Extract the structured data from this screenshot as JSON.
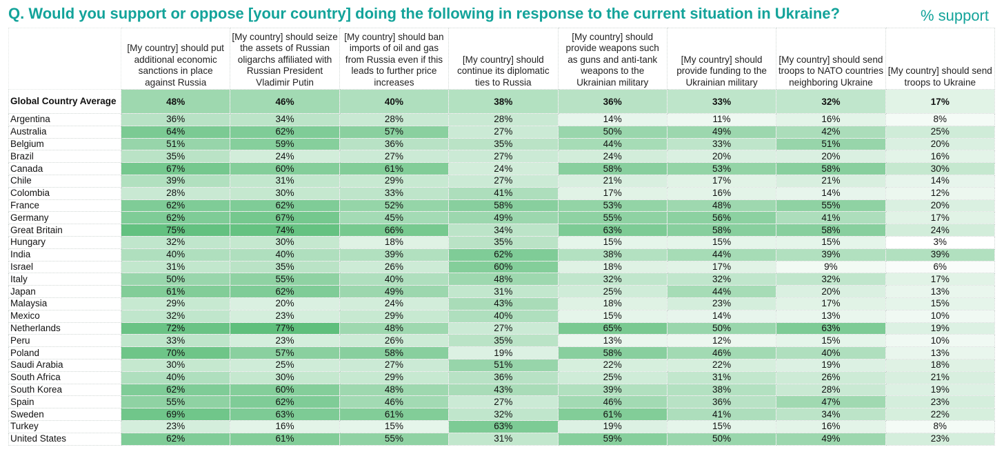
{
  "title": "Q. Would you support or oppose [your country] doing the following in response to the current situation in Ukraine?",
  "unit_label": "% support",
  "chart_data": {
    "type": "table",
    "columns": [
      "[My country] should put additional economic sanctions in place against Russia",
      "[My country] should seize the assets of Russian oligarchs affiliated with Russian President Vladimir Putin",
      "[My country] should ban imports of oil and gas from Russia even if this leads to further price increases",
      "[My country] should continue its diplomatic ties to Russia",
      "[My country] should provide weapons such as guns and anti-tank weapons to the Ukrainian military",
      "[My country] should provide funding to the Ukrainian military",
      "[My country] should send troops to NATO countries neighboring Ukraine",
      "[My country] should send troops to Ukraine"
    ],
    "average": {
      "label": "Global Country Average",
      "values": [
        "48%",
        "46%",
        "40%",
        "38%",
        "36%",
        "33%",
        "32%",
        "17%"
      ]
    },
    "rows": [
      {
        "country": "Argentina",
        "values": [
          "36%",
          "34%",
          "28%",
          "28%",
          "14%",
          "11%",
          "16%",
          "8%"
        ]
      },
      {
        "country": "Australia",
        "values": [
          "64%",
          "62%",
          "57%",
          "27%",
          "50%",
          "49%",
          "42%",
          "25%"
        ]
      },
      {
        "country": "Belgium",
        "values": [
          "51%",
          "59%",
          "36%",
          "35%",
          "44%",
          "33%",
          "51%",
          "20%"
        ]
      },
      {
        "country": "Brazil",
        "values": [
          "35%",
          "24%",
          "27%",
          "27%",
          "24%",
          "20%",
          "20%",
          "16%"
        ]
      },
      {
        "country": "Canada",
        "values": [
          "67%",
          "60%",
          "61%",
          "24%",
          "58%",
          "53%",
          "58%",
          "30%"
        ]
      },
      {
        "country": "Chile",
        "values": [
          "39%",
          "31%",
          "29%",
          "27%",
          "21%",
          "17%",
          "21%",
          "14%"
        ]
      },
      {
        "country": "Colombia",
        "values": [
          "28%",
          "30%",
          "33%",
          "41%",
          "17%",
          "16%",
          "14%",
          "12%"
        ]
      },
      {
        "country": "France",
        "values": [
          "62%",
          "62%",
          "52%",
          "58%",
          "53%",
          "48%",
          "55%",
          "20%"
        ]
      },
      {
        "country": "Germany",
        "values": [
          "62%",
          "67%",
          "45%",
          "49%",
          "55%",
          "56%",
          "41%",
          "17%"
        ]
      },
      {
        "country": "Great Britain",
        "values": [
          "75%",
          "74%",
          "66%",
          "34%",
          "63%",
          "58%",
          "58%",
          "24%"
        ]
      },
      {
        "country": "Hungary",
        "values": [
          "32%",
          "30%",
          "18%",
          "35%",
          "15%",
          "15%",
          "15%",
          "3%"
        ]
      },
      {
        "country": "India",
        "values": [
          "40%",
          "40%",
          "39%",
          "62%",
          "38%",
          "44%",
          "39%",
          "39%"
        ]
      },
      {
        "country": "Israel",
        "values": [
          "31%",
          "35%",
          "26%",
          "60%",
          "18%",
          "17%",
          "9%",
          "6%"
        ]
      },
      {
        "country": "Italy",
        "values": [
          "50%",
          "55%",
          "40%",
          "48%",
          "32%",
          "32%",
          "32%",
          "17%"
        ]
      },
      {
        "country": "Japan",
        "values": [
          "61%",
          "62%",
          "49%",
          "31%",
          "25%",
          "44%",
          "20%",
          "13%"
        ]
      },
      {
        "country": "Malaysia",
        "values": [
          "29%",
          "20%",
          "24%",
          "43%",
          "18%",
          "23%",
          "17%",
          "15%"
        ]
      },
      {
        "country": "Mexico",
        "values": [
          "32%",
          "23%",
          "29%",
          "40%",
          "15%",
          "14%",
          "13%",
          "10%"
        ]
      },
      {
        "country": "Netherlands",
        "values": [
          "72%",
          "77%",
          "48%",
          "27%",
          "65%",
          "50%",
          "63%",
          "19%"
        ]
      },
      {
        "country": "Peru",
        "values": [
          "33%",
          "23%",
          "26%",
          "35%",
          "13%",
          "12%",
          "15%",
          "10%"
        ]
      },
      {
        "country": "Poland",
        "values": [
          "70%",
          "57%",
          "58%",
          "19%",
          "58%",
          "46%",
          "40%",
          "13%"
        ]
      },
      {
        "country": "Saudi Arabia",
        "values": [
          "30%",
          "25%",
          "27%",
          "51%",
          "22%",
          "22%",
          "19%",
          "18%"
        ]
      },
      {
        "country": "South Africa",
        "values": [
          "40%",
          "30%",
          "29%",
          "36%",
          "25%",
          "31%",
          "26%",
          "21%"
        ]
      },
      {
        "country": "South Korea",
        "values": [
          "62%",
          "60%",
          "48%",
          "43%",
          "39%",
          "38%",
          "28%",
          "19%"
        ]
      },
      {
        "country": "Spain",
        "values": [
          "55%",
          "62%",
          "46%",
          "27%",
          "46%",
          "36%",
          "47%",
          "23%"
        ]
      },
      {
        "country": "Sweden",
        "values": [
          "69%",
          "63%",
          "61%",
          "32%",
          "61%",
          "41%",
          "34%",
          "22%"
        ]
      },
      {
        "country": "Turkey",
        "values": [
          "23%",
          "16%",
          "15%",
          "63%",
          "19%",
          "15%",
          "16%",
          "8%"
        ]
      },
      {
        "country": "United States",
        "values": [
          "62%",
          "61%",
          "55%",
          "31%",
          "59%",
          "50%",
          "49%",
          "23%"
        ]
      }
    ],
    "color_scale": {
      "low": "#ffffff",
      "high": "#5fbf7c",
      "domain_min": 3,
      "domain_max": 77
    }
  }
}
